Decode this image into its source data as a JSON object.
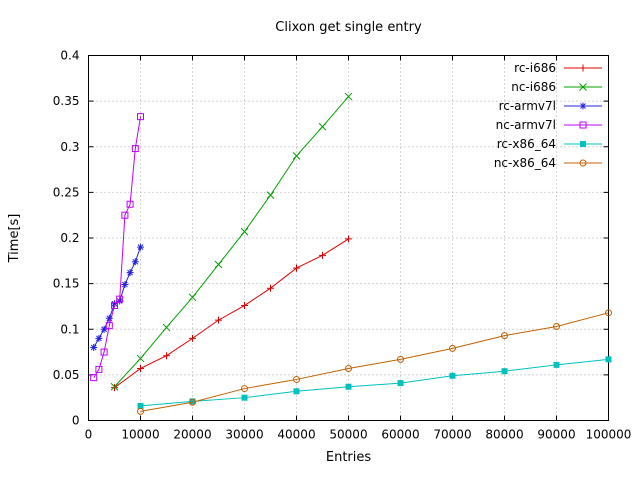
{
  "chart_data": {
    "type": "line",
    "title": "Clixon get single entry",
    "xlabel": "Entries",
    "ylabel": "Time[s]",
    "xlim": [
      0,
      100000
    ],
    "ylim": [
      0,
      0.4
    ],
    "grid": true,
    "legend_position": "top-right-inside",
    "x_ticks": {
      "values": [
        0,
        10000,
        20000,
        30000,
        40000,
        50000,
        60000,
        70000,
        80000,
        90000,
        100000
      ],
      "labels": [
        "0",
        "10000",
        "20000",
        "30000",
        "40000",
        "50000",
        "60000",
        "70000",
        "80000",
        "90000",
        "100000"
      ]
    },
    "y_ticks": {
      "values": [
        0,
        0.05,
        0.1,
        0.15,
        0.2,
        0.25,
        0.3,
        0.35,
        0.4
      ],
      "labels": [
        "0",
        "0.05",
        "0.1",
        "0.15",
        "0.2",
        "0.25",
        "0.3",
        "0.35",
        "0.4"
      ]
    },
    "series": [
      {
        "name": "rc-i686",
        "color": "#dd0000",
        "marker": "plus",
        "x": [
          5000,
          10000,
          15000,
          20000,
          25000,
          30000,
          35000,
          40000,
          45000,
          50000
        ],
        "y": [
          0.036,
          0.057,
          0.071,
          0.09,
          0.11,
          0.126,
          0.145,
          0.167,
          0.181,
          0.199
        ]
      },
      {
        "name": "nc-i686",
        "color": "#00a000",
        "marker": "cross",
        "x": [
          5000,
          10000,
          15000,
          20000,
          25000,
          30000,
          35000,
          40000,
          45000,
          50000
        ],
        "y": [
          0.037,
          0.068,
          0.102,
          0.135,
          0.171,
          0.207,
          0.247,
          0.29,
          0.322,
          0.355
        ]
      },
      {
        "name": "rc-armv7l",
        "color": "#2222dd",
        "marker": "asterisk",
        "x": [
          1000,
          2000,
          3000,
          4000,
          5000,
          6000,
          7000,
          8000,
          9000,
          10000
        ],
        "y": [
          0.08,
          0.09,
          0.1,
          0.112,
          0.128,
          0.131,
          0.149,
          0.162,
          0.174,
          0.19
        ]
      },
      {
        "name": "nc-armv7l",
        "color": "#c000ff",
        "marker": "square-open",
        "x": [
          1000,
          2000,
          3000,
          4000,
          5000,
          6000,
          7000,
          8000,
          9000,
          10000
        ],
        "y": [
          0.047,
          0.056,
          0.075,
          0.104,
          0.126,
          0.133,
          0.225,
          0.237,
          0.298,
          0.333
        ]
      },
      {
        "name": "rc-x86_64",
        "color": "#00c0c0",
        "marker": "square-filled",
        "x": [
          10000,
          20000,
          30000,
          40000,
          50000,
          60000,
          70000,
          80000,
          90000,
          100000
        ],
        "y": [
          0.016,
          0.021,
          0.025,
          0.032,
          0.037,
          0.041,
          0.049,
          0.054,
          0.061,
          0.067
        ]
      },
      {
        "name": "nc-x86_64",
        "color": "#c06000",
        "marker": "circle-open",
        "x": [
          10000,
          20000,
          30000,
          40000,
          50000,
          60000,
          70000,
          80000,
          90000,
          100000
        ],
        "y": [
          0.01,
          0.02,
          0.035,
          0.045,
          0.057,
          0.067,
          0.079,
          0.093,
          0.103,
          0.118
        ]
      }
    ],
    "style": {
      "grid_color": "#a8a8a8",
      "border_color": "#000000",
      "background": "#ffffff"
    }
  }
}
